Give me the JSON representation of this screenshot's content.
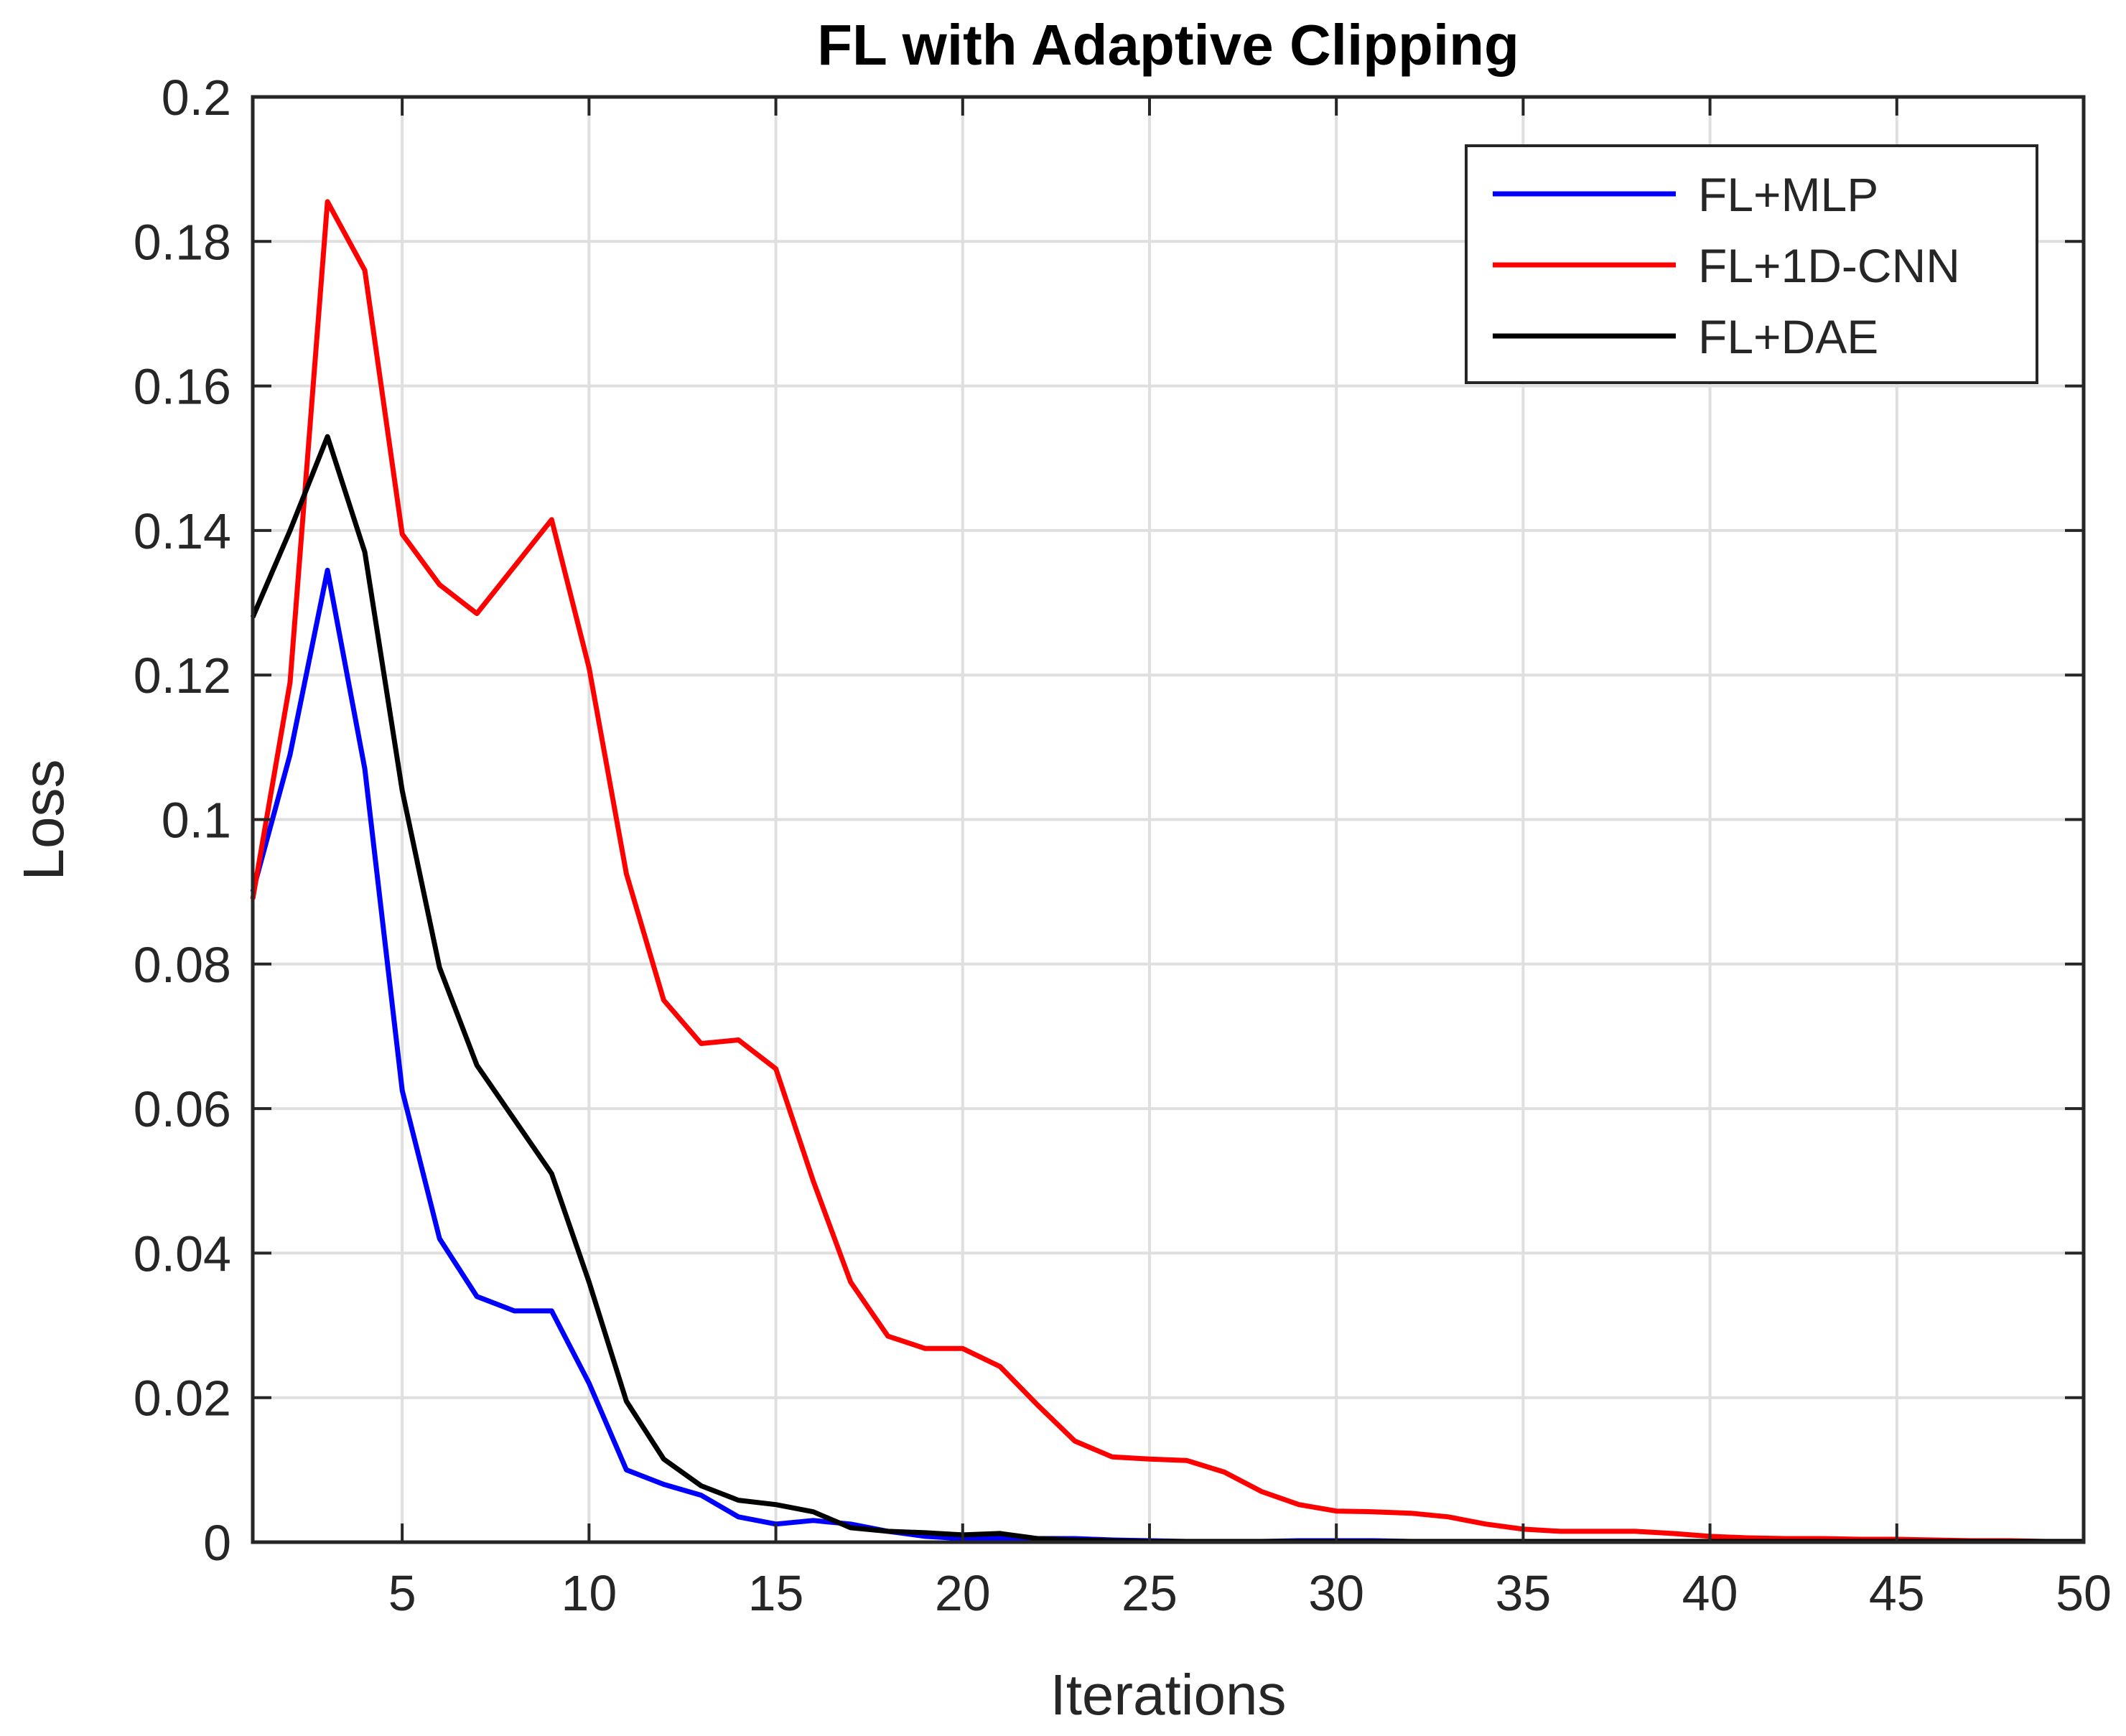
{
  "chart_data": {
    "type": "line",
    "title": "FL with Adaptive Clipping",
    "xlabel": "Iterations",
    "ylabel": "Loss",
    "xlim": [
      1,
      50
    ],
    "ylim": [
      0,
      0.2
    ],
    "xticks": [
      5,
      10,
      15,
      20,
      25,
      30,
      35,
      40,
      45,
      50
    ],
    "yticks": [
      0,
      0.02,
      0.04,
      0.06,
      0.08,
      0.1,
      0.12,
      0.14,
      0.16,
      0.18,
      0.2
    ],
    "ytick_labels": [
      "0",
      "0.02",
      "0.04",
      "0.06",
      "0.08",
      "0.1",
      "0.12",
      "0.14",
      "0.16",
      "0.18",
      "0.2"
    ],
    "grid": true,
    "legend_position": "top-right",
    "x": [
      1,
      2,
      3,
      4,
      5,
      6,
      7,
      8,
      9,
      10,
      11,
      12,
      13,
      14,
      15,
      16,
      17,
      18,
      19,
      20,
      21,
      22,
      23,
      24,
      25,
      26,
      27,
      28,
      29,
      30,
      31,
      32,
      33,
      34,
      35,
      36,
      37,
      38,
      39,
      40,
      41,
      42,
      43,
      44,
      45,
      46,
      47,
      48,
      49,
      50
    ],
    "series": [
      {
        "name": "FL+MLP",
        "color": "#0000ff",
        "values": [
          0.09,
          0.109,
          0.1345,
          0.107,
          0.0625,
          0.042,
          0.034,
          0.032,
          0.032,
          0.022,
          0.01,
          0.008,
          0.0065,
          0.0035,
          0.0025,
          0.003,
          0.0025,
          0.0015,
          0.0008,
          0.0005,
          0.0005,
          0.0005,
          0.0005,
          0.0003,
          0.0002,
          0.0001,
          0.0001,
          0.0001,
          0.0002,
          0.0002,
          0.0002,
          0.0001,
          0.0001,
          0.0001,
          0.0001,
          0.0001,
          0.0001,
          0.0001,
          0.0001,
          0.0001,
          0.0001,
          0.0001,
          0.0001,
          0.0001,
          0.0001,
          0.0001,
          0.0001,
          0.0001,
          0.0001,
          0.0001
        ]
      },
      {
        "name": "FL+1D-CNN",
        "color": "#ff0000",
        "values": [
          0.089,
          0.119,
          0.1855,
          0.176,
          0.1395,
          0.1325,
          0.1285,
          0.135,
          0.1415,
          0.121,
          0.0925,
          0.075,
          0.069,
          0.0695,
          0.0655,
          0.05,
          0.036,
          0.0285,
          0.0268,
          0.0268,
          0.0243,
          0.019,
          0.014,
          0.0118,
          0.0115,
          0.0113,
          0.0097,
          0.007,
          0.0052,
          0.0043,
          0.0042,
          0.004,
          0.0035,
          0.0025,
          0.0018,
          0.0015,
          0.0015,
          0.0015,
          0.0012,
          0.0008,
          0.0006,
          0.0005,
          0.0005,
          0.0004,
          0.0004,
          0.0003,
          0.0002,
          0.0002,
          0.0001,
          0.0001
        ]
      },
      {
        "name": "FL+DAE",
        "color": "#000000",
        "values": [
          0.128,
          0.14,
          0.153,
          0.137,
          0.104,
          0.0795,
          0.066,
          0.0585,
          0.051,
          0.036,
          0.0195,
          0.0115,
          0.0078,
          0.0058,
          0.0052,
          0.0042,
          0.002,
          0.0015,
          0.0013,
          0.001,
          0.0012,
          0.0005,
          0.0003,
          0.0002,
          0.0001,
          0.0001,
          0.0001,
          0.0001,
          0.0001,
          0.0001,
          0.0001,
          0.0001,
          0.0001,
          0.0001,
          0.0001,
          0.0001,
          0.0001,
          0.0001,
          0.0001,
          0.0001,
          0.0001,
          0.0001,
          0.0001,
          0.0001,
          0.0001,
          0.0001,
          0.0001,
          0.0001,
          0.0001,
          0.0001
        ]
      }
    ]
  }
}
